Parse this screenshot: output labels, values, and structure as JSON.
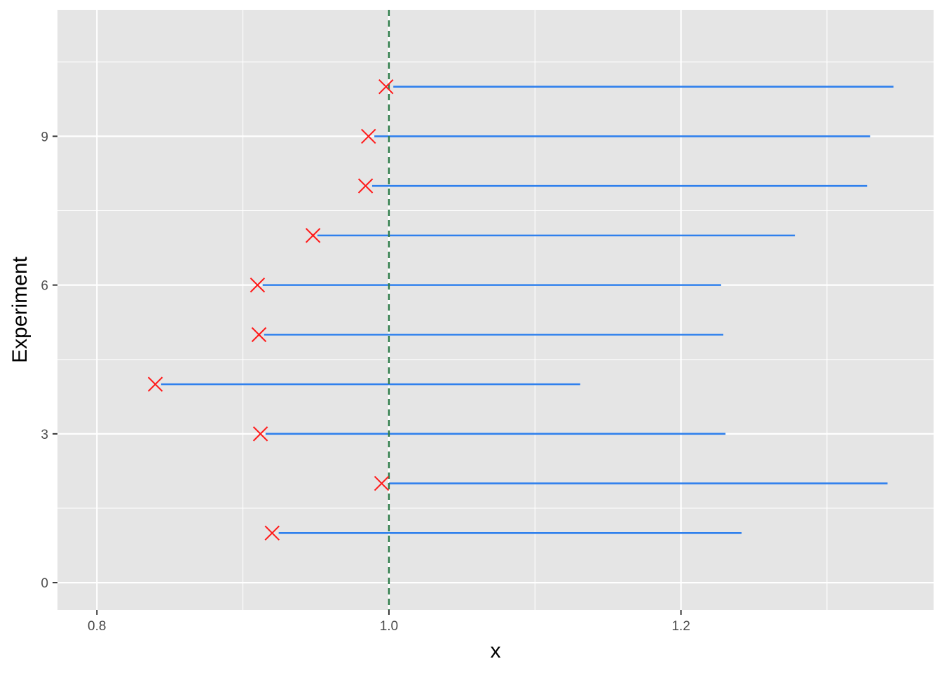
{
  "chart_data": {
    "type": "interval",
    "xlabel": "x",
    "ylabel": "Experiment",
    "xlim": [
      0.773,
      1.373
    ],
    "ylim": [
      -0.55,
      11.55
    ],
    "x_ticks": [
      0.8,
      1.0,
      1.2
    ],
    "x_tick_labels": [
      "0.8",
      "1.0",
      "1.2"
    ],
    "x_minor_ticks": [
      0.9,
      1.1,
      1.3
    ],
    "y_ticks": [
      0,
      3,
      6,
      9
    ],
    "y_tick_labels": [
      "0",
      "3",
      "6",
      "9"
    ],
    "y_minor_ticks": [
      1.5,
      4.5,
      7.5,
      10.5
    ],
    "reference_line": {
      "x": 1.0,
      "style": "dashed",
      "color": "#2e7d4a"
    },
    "grid": true,
    "colors": {
      "panel": "#e5e5e5",
      "grid": "#ffffff",
      "interval": "#2f80ed",
      "point": "#ff1a1a"
    },
    "experiments": [
      {
        "y": 1,
        "point": 0.92,
        "lower": 0.9245,
        "upper": 1.2415
      },
      {
        "y": 2,
        "point": 0.995,
        "lower": 1.0,
        "upper": 1.3415
      },
      {
        "y": 3,
        "point": 0.912,
        "lower": 0.9155,
        "upper": 1.2305
      },
      {
        "y": 4,
        "point": 0.84,
        "lower": 0.844,
        "upper": 1.131
      },
      {
        "y": 5,
        "point": 0.911,
        "lower": 0.9145,
        "upper": 1.229
      },
      {
        "y": 6,
        "point": 0.91,
        "lower": 0.9135,
        "upper": 1.2275
      },
      {
        "y": 7,
        "point": 0.948,
        "lower": 0.951,
        "upper": 1.278
      },
      {
        "y": 8,
        "point": 0.984,
        "lower": 0.9885,
        "upper": 1.3275
      },
      {
        "y": 9,
        "point": 0.986,
        "lower": 0.99,
        "upper": 1.3295
      },
      {
        "y": 10,
        "point": 0.998,
        "lower": 1.003,
        "upper": 1.3455
      }
    ]
  }
}
